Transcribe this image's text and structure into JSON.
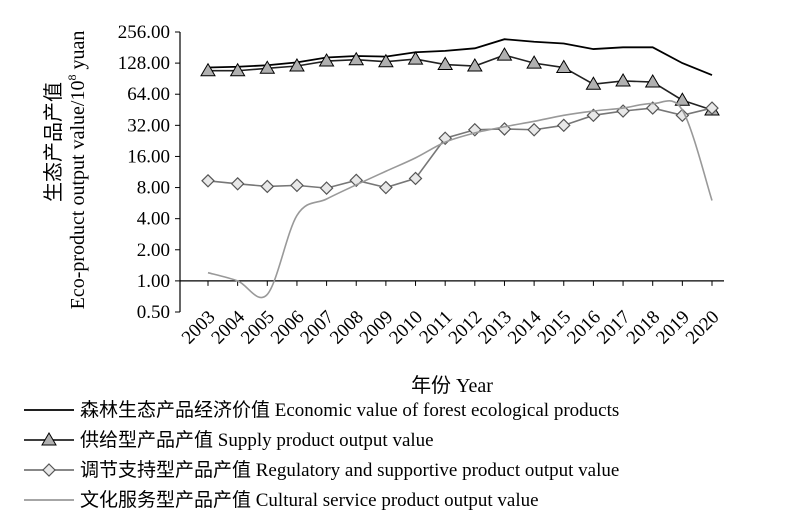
{
  "chart_data": {
    "type": "line",
    "yscale": "log2",
    "ylim": [
      0.5,
      256
    ],
    "yticks": [
      "256.00",
      "128.00",
      "64.00",
      "32.00",
      "16.00",
      "8.00",
      "4.00",
      "2.00",
      "1.00",
      "0.50"
    ],
    "ytick_values": [
      256,
      128,
      64,
      32,
      16,
      8,
      4,
      2,
      1,
      0.5
    ],
    "categories": [
      "2003",
      "2004",
      "2005",
      "2006",
      "2007",
      "2008",
      "2009",
      "2010",
      "2011",
      "2012",
      "2013",
      "2014",
      "2015",
      "2016",
      "2017",
      "2018",
      "2019",
      "2020"
    ],
    "xlabel": "年份 Year",
    "ylabel_cn": "生态产品产值",
    "ylabel_en": "Eco-product output value/10",
    "ylabel_sup": "8",
    "ylabel_unit": " yuan",
    "series": [
      {
        "name": "森林生态产品经济价值 Economic value of forest ecological products",
        "marker": "none",
        "color": "#000000",
        "values": [
          116,
          118,
          122,
          130,
          145,
          150,
          148,
          163,
          168,
          178,
          218,
          206,
          198,
          175,
          182,
          182,
          128,
          98
        ]
      },
      {
        "name": "供给型产品产值 Supply product output value",
        "marker": "triangle",
        "color": "#222222",
        "values": [
          108,
          108,
          114,
          120,
          134,
          138,
          132,
          140,
          124,
          120,
          153,
          128,
          116,
          80,
          86,
          84,
          56,
          45
        ]
      },
      {
        "name": "调节支持型产品产值 Regulatory and supportive product output value",
        "marker": "diamond",
        "color": "#777777",
        "values": [
          9.3,
          8.7,
          8.2,
          8.4,
          7.9,
          9.4,
          8.0,
          9.8,
          24,
          29,
          29.5,
          29,
          32,
          40,
          44,
          47,
          40,
          47
        ]
      },
      {
        "name": "文化服务型产品产值 Cultural service product output value",
        "marker": "none",
        "color": "#999999",
        "values": [
          1.2,
          1.0,
          0.74,
          4.3,
          6.2,
          8.5,
          11.5,
          15.5,
          22,
          27,
          31,
          35,
          40,
          44,
          47,
          52,
          45,
          6.0
        ]
      }
    ]
  }
}
